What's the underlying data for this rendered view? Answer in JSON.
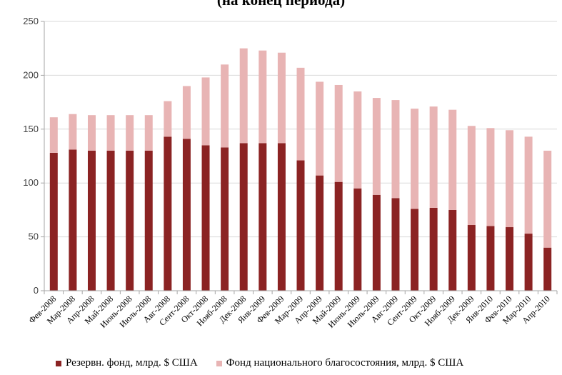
{
  "chart_data": {
    "type": "bar",
    "stacked": true,
    "title": "(на конец периода)",
    "categories": [
      "Фев-2008",
      "Мар-2008",
      "Апр-2008",
      "Май-2008",
      "Июнь-2008",
      "Июль-2008",
      "Авг-2008",
      "Сент-2008",
      "Окт-2008",
      "Нояб-2008",
      "Дек-2008",
      "Янв-2009",
      "Фев-2009",
      "Мар-2009",
      "Апр-2009",
      "Май-2009",
      "Июнь-2009",
      "Июль-2009",
      "Авг-2009",
      "Сент-2009",
      "Окт-2009",
      "Нояб-2009",
      "Дек-2009",
      "Янв-2010",
      "Фев-2010",
      "Мар-2010",
      "Апр-2010"
    ],
    "series": [
      {
        "name": "Резервн. фонд, млрд. $ США",
        "color": "#8b2323",
        "values": [
          128,
          131,
          130,
          130,
          130,
          130,
          143,
          141,
          135,
          133,
          137,
          137,
          137,
          121,
          107,
          101,
          95,
          89,
          86,
          76,
          77,
          75,
          61,
          60,
          59,
          53,
          40
        ]
      },
      {
        "name": "Фонд национального благосостояния, млрд. $ США",
        "color": "#e8b4b4",
        "values": [
          33,
          33,
          33,
          33,
          33,
          33,
          33,
          49,
          63,
          77,
          88,
          86,
          84,
          86,
          87,
          90,
          90,
          90,
          91,
          93,
          94,
          93,
          92,
          91,
          90,
          90,
          90
        ]
      }
    ],
    "ylim": [
      0,
      250
    ],
    "yticks": [
      0,
      50,
      100,
      150,
      200,
      250
    ],
    "grid": true,
    "legend_position": "bottom"
  }
}
